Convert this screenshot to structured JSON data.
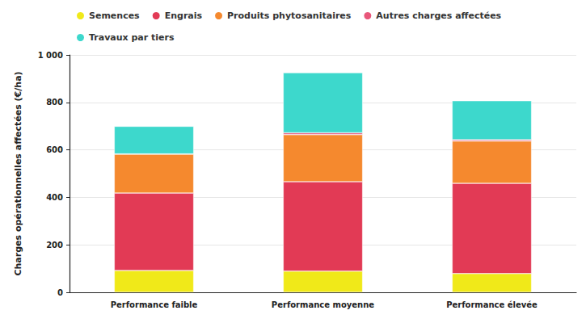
{
  "chart_data": {
    "type": "bar",
    "stacked": true,
    "y_label": "Charges opérationnelles affectées (€/ha)",
    "categories": [
      "Performance faible",
      "Performance moyenne",
      "Performance élevée"
    ],
    "series": [
      {
        "name": "Semences",
        "color": "#f0e919",
        "values": [
          92,
          89,
          79
        ]
      },
      {
        "name": "Engrais",
        "color": "#e23a55",
        "values": [
          326,
          377,
          380
        ]
      },
      {
        "name": "Produits phytosanitaires",
        "color": "#f5892e",
        "values": [
          164,
          198,
          178
        ]
      },
      {
        "name": "Autres charges affectées",
        "color": "#e8577a",
        "values": [
          1,
          8,
          6
        ]
      },
      {
        "name": "Travaux par tiers",
        "color": "#3dd8cc",
        "values": [
          116,
          253,
          164
        ]
      }
    ],
    "ylim": [
      0,
      1000
    ],
    "yticks": [
      0,
      200,
      400,
      600,
      800,
      {
        "value": 1000,
        "label": "1 000"
      }
    ],
    "grid": true,
    "legend": "top-left"
  }
}
